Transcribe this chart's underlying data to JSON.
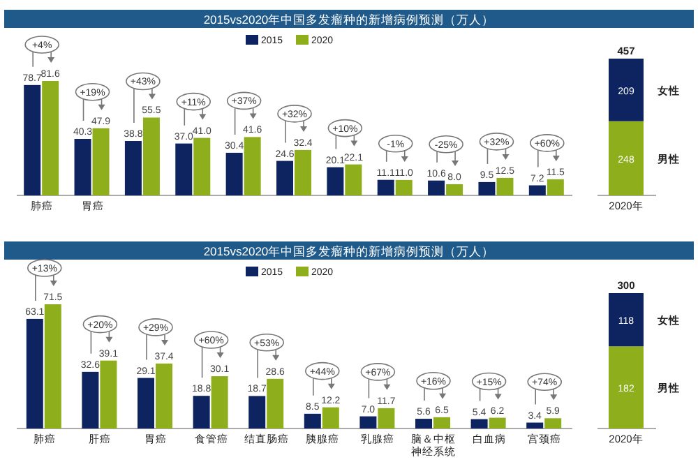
{
  "chart_data": [
    {
      "type": "bar",
      "title": "2015vs2020年中国多发瘤种的新增病例预测（万人）",
      "categories": [
        "肺癌",
        "胃癌",
        null,
        null,
        null,
        null,
        null,
        null,
        null,
        null,
        null
      ],
      "legend": "top",
      "series": [
        {
          "name": "2015",
          "color": "#0e2460",
          "values": [
            78.7,
            40.3,
            38.8,
            37.0,
            30.4,
            24.6,
            20.1,
            11.1,
            10.6,
            9.5,
            7.2
          ],
          "value_labels": [
            "78.7",
            "40.3",
            "38.8",
            "37.0",
            "30.4",
            "24.6",
            "20.1",
            "11.1",
            "10.6",
            "9.5",
            "7.2"
          ]
        },
        {
          "name": "2020",
          "color": "#8fae1b",
          "values": [
            81.6,
            47.9,
            55.5,
            41.0,
            41.6,
            32.4,
            22.1,
            11.0,
            8.0,
            12.5,
            11.5
          ],
          "value_labels": [
            "81.6",
            "47.9",
            "55.5",
            "41.0",
            "41.6",
            "32.4",
            "22.1",
            "11.0",
            "8.0",
            "12.5",
            "11.5"
          ]
        }
      ],
      "annotations": [
        "+4%",
        "+19%",
        "+43%",
        "+11%",
        "+37%",
        "+32%",
        "+10%",
        "-1%",
        "-25%",
        "+32%",
        "+60%"
      ]
    },
    {
      "type": "bar",
      "stacked": true,
      "categories": [
        "2020年"
      ],
      "data_labels": true,
      "totals": [
        "457"
      ],
      "series": [
        {
          "name": "男性",
          "color": "#8fae1b",
          "values": [
            248
          ]
        },
        {
          "name": "女性",
          "color": "#0e2460",
          "values": [
            209
          ]
        }
      ]
    },
    {
      "type": "bar",
      "title": "2015vs2020年中国多发瘤种的新增病例预测（万人）",
      "categories": [
        "肺癌",
        "肝癌",
        "胃癌",
        "食管癌",
        "结直肠癌",
        "胰腺癌",
        "乳腺癌",
        "脑＆中枢神经系统",
        "白血病",
        "宫颈癌"
      ],
      "legend": "top",
      "series": [
        {
          "name": "2015",
          "color": "#0e2460",
          "values": [
            63.1,
            32.6,
            29.1,
            18.8,
            18.7,
            8.5,
            7.0,
            5.6,
            5.4,
            3.4
          ],
          "value_labels": [
            "63.1",
            "32.6",
            "29.1",
            "18.8",
            "18.7",
            "8.5",
            "7.0",
            "5.6",
            "5.4",
            "3.4"
          ]
        },
        {
          "name": "2020",
          "color": "#8fae1b",
          "values": [
            71.5,
            39.1,
            37.4,
            30.1,
            28.6,
            12.2,
            11.7,
            6.5,
            6.2,
            5.9
          ],
          "value_labels": [
            "71.5",
            "39.1",
            "37.4",
            "30.1",
            "28.6",
            "12.2",
            "11.7",
            "6.5",
            "6.2",
            "5.9"
          ]
        }
      ],
      "annotations": [
        "+13%",
        "+20%",
        "+29%",
        "+60%",
        "+53%",
        "+44%",
        "+67%",
        "+16%",
        "+15%",
        "+74%"
      ]
    },
    {
      "type": "bar",
      "stacked": true,
      "categories": [
        "2020年"
      ],
      "data_labels": true,
      "totals": [
        "300"
      ],
      "series": [
        {
          "name": "男性",
          "color": "#8fae1b",
          "values": [
            182
          ]
        },
        {
          "name": "女性",
          "color": "#0e2460",
          "values": [
            118
          ]
        }
      ]
    }
  ]
}
